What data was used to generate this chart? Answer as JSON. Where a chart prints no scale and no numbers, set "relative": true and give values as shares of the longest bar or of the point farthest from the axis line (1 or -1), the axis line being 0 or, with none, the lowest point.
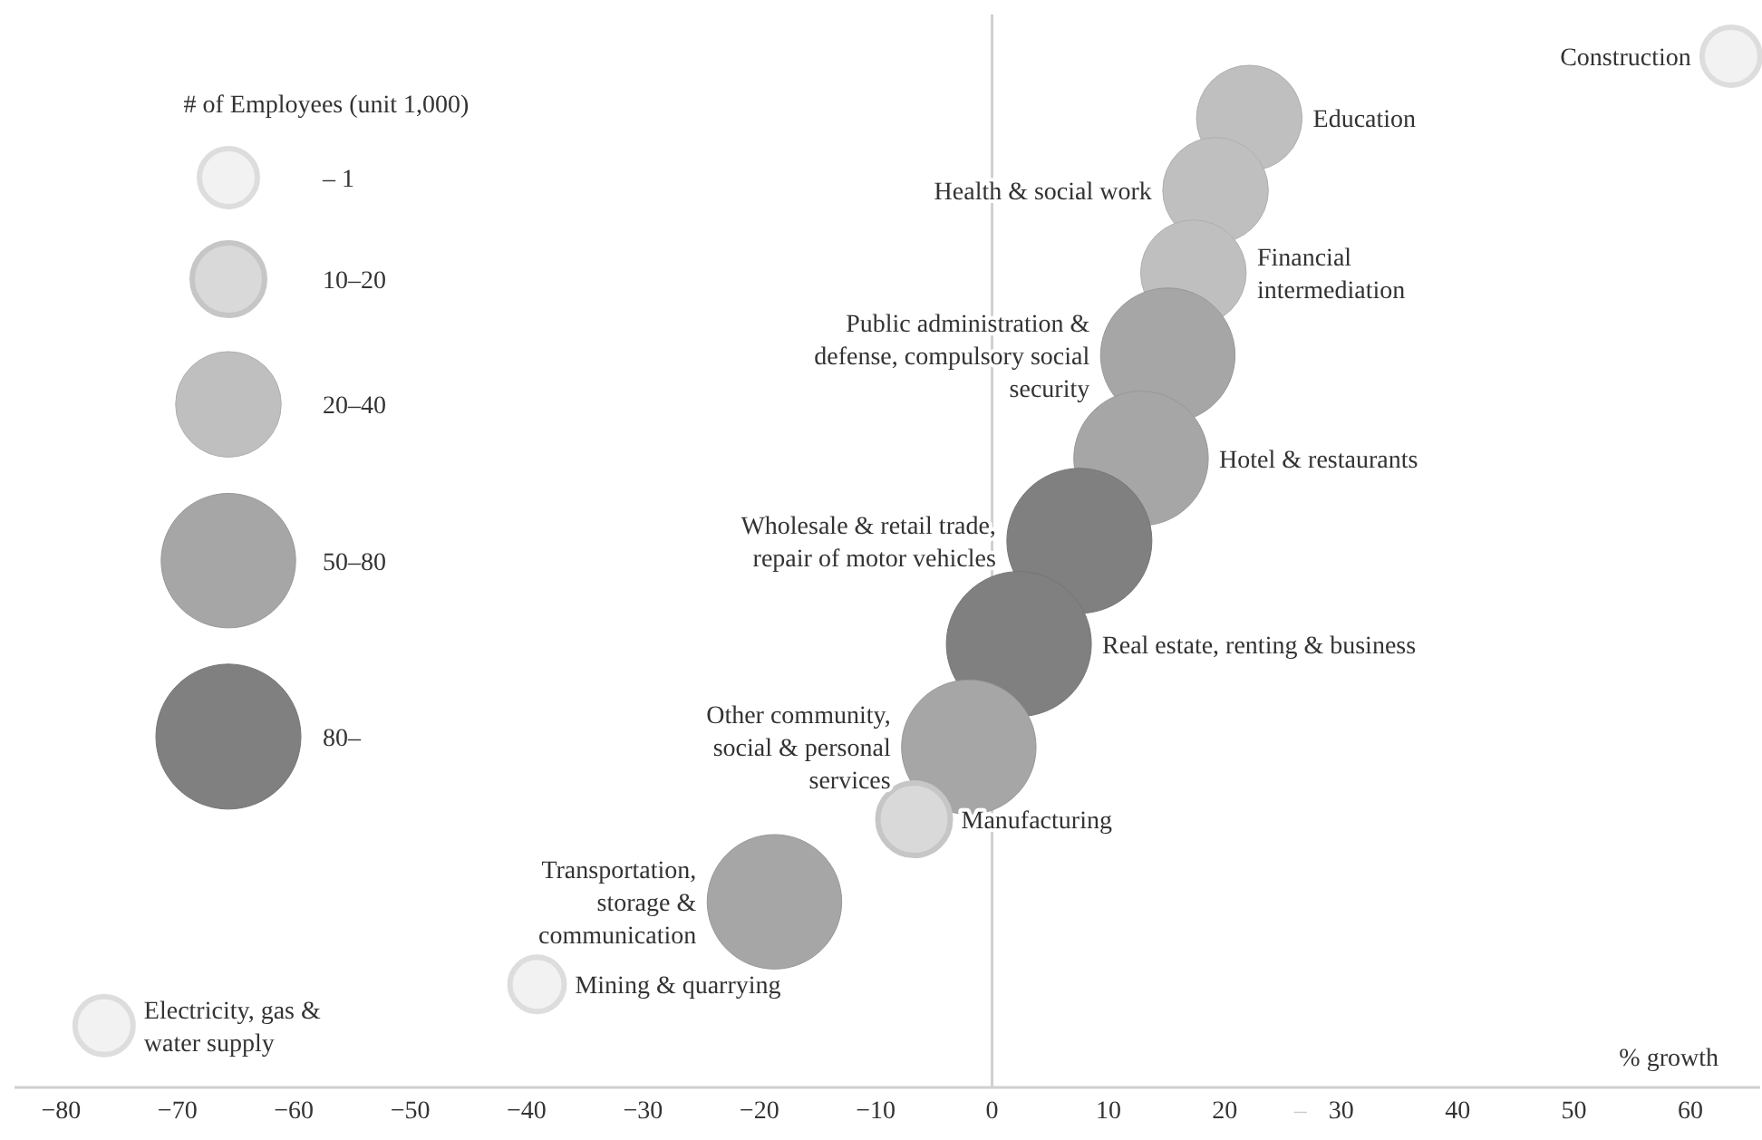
{
  "chart_data": {
    "type": "bubble",
    "relative": true,
    "xlabel": "% growth",
    "legend_title": "# of Employees (unit 1,000)",
    "xlim": [
      -84,
      66
    ],
    "xticks": [
      -80,
      -70,
      -60,
      -50,
      -40,
      -30,
      -20,
      -10,
      0,
      10,
      20,
      {
        "value": 26.5,
        "label": "–"
      },
      30,
      40,
      50,
      60
    ],
    "ref_lines": [
      {
        "axis": "x",
        "value": 0,
        "color": "#d0d0d0"
      }
    ],
    "size_legend": [
      {
        "value": 0.16,
        "label": "– 1"
      },
      {
        "value": 0.25,
        "label": "10–20"
      },
      {
        "value": 0.53,
        "label": "20–40"
      },
      {
        "value": 0.86,
        "label": "50–80"
      },
      {
        "value": 1,
        "label": "80–"
      }
    ],
    "series": [
      {
        "x": [
          63.5,
          22.1,
          19.2,
          17.3,
          15.1,
          12.8,
          7.5,
          2.3,
          -2.0,
          -6.7,
          -18.7,
          -39.1,
          -76.3
        ],
        "values": [
          1,
          0.94,
          0.87,
          0.79,
          0.71,
          0.61,
          0.53,
          0.43,
          0.33,
          0.26,
          0.18,
          0.1,
          0.06
        ],
        "sizes": [
          0.16,
          0.53,
          0.53,
          0.53,
          0.86,
          0.86,
          1,
          1,
          0.86,
          0.25,
          0.86,
          0.14,
          0.16
        ],
        "colors": [
          "#f2f2f2",
          "#bfbfbf",
          "#bfbfbf",
          "#bfbfbf",
          "#a6a6a6",
          "#a6a6a6",
          "#808080",
          "#808080",
          "#a6a6a6",
          "#d9d9d9",
          "#a6a6a6",
          "#f2f2f2",
          "#f2f2f2"
        ]
      }
    ],
    "annotations": [
      "Construction",
      "Education",
      "Health & social work",
      "Financial\nintermediation",
      "Public administration &\ndefense, compulsory social\nsecurity",
      "Hotel & restaurants",
      "Wholesale & retail trade,\nrepair of motor vehicles",
      "Real estate, renting & business",
      "Other community,\nsocial & personal\nservices",
      "Manufacturing",
      "Transportation,\nstorage &\ncommunication",
      "Mining & quarrying",
      "Electricity, gas &\nwater supply"
    ]
  }
}
